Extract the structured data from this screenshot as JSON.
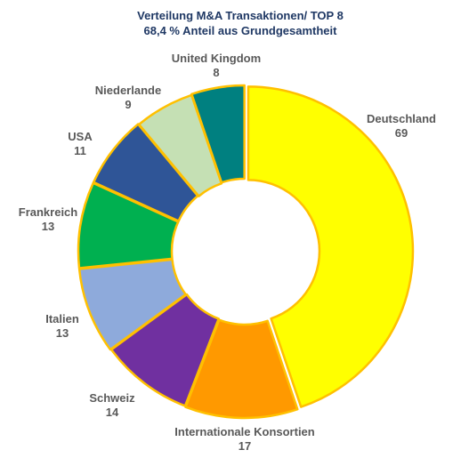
{
  "chart_data": {
    "type": "pie",
    "variant": "donut",
    "title_lines": [
      "Verteilung M&A Transaktionen/ TOP 8",
      "68,4 % Anteil aus Grundgesamtheit"
    ],
    "categories": [
      "Deutschland",
      "Internationale Konsortien",
      "Schweiz",
      "Italien",
      "Frankreich",
      "USA",
      "Niederlande",
      "United Kingdom"
    ],
    "values": [
      69,
      17,
      14,
      13,
      13,
      11,
      9,
      8
    ],
    "labels": [
      "69",
      "17",
      "14",
      "13",
      "13",
      "11",
      "9",
      "8"
    ],
    "colors": [
      "#ffff00",
      "#ff9900",
      "#7030a0",
      "#8eaadb",
      "#00b050",
      "#2f5597",
      "#c5e0b4",
      "#008080"
    ],
    "slice_border_color": "#ffc000",
    "label_color": "#595959",
    "title_color": "#1f3864",
    "legend": "none"
  }
}
